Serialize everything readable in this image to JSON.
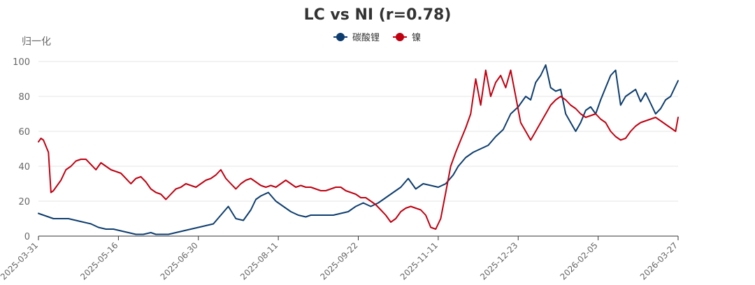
{
  "chart_data": {
    "type": "line",
    "title": "LC vs NI (r=0.78)",
    "ylabel": "归一化",
    "xlabel": "",
    "ylim": [
      0,
      100
    ],
    "yticks": [
      "0",
      "20",
      "40",
      "60",
      "80",
      "100"
    ],
    "grid": true,
    "legend_position": "top-center",
    "x_tick_labels": [
      "2025-03-31",
      "2025-05-16",
      "2025-06-30",
      "2025-08-11",
      "2025-09-22",
      "2025-11-11",
      "2025-12-23",
      "2026-02-05",
      "2026-03-27"
    ],
    "x_tick_positions": [
      0,
      32,
      64,
      96,
      128,
      160,
      192,
      224,
      256
    ],
    "n_points": 257,
    "series": [
      {
        "name": "碳酸锂",
        "color": "#0d3d6e",
        "x": [
          0,
          4,
          6,
          9,
          12,
          15,
          18,
          21,
          24,
          27,
          30,
          33,
          36,
          39,
          42,
          45,
          47,
          50,
          52,
          55,
          58,
          61,
          64,
          67,
          70,
          73,
          76,
          79,
          82,
          85,
          87,
          89,
          92,
          95,
          98,
          101,
          104,
          107,
          109,
          112,
          115,
          118,
          121,
          124,
          127,
          130,
          133,
          136,
          139,
          142,
          145,
          148,
          151,
          154,
          157,
          160,
          163,
          166,
          168,
          171,
          174,
          177,
          180,
          183,
          186,
          189,
          192,
          195,
          197,
          199,
          201,
          203,
          205,
          207,
          209,
          211,
          213,
          215,
          217,
          219,
          221,
          223,
          225,
          227,
          229,
          231,
          233,
          235,
          237,
          239,
          241,
          243,
          245,
          247,
          249,
          251,
          253,
          255,
          256
        ],
        "values": [
          13,
          11,
          10,
          10,
          10,
          9,
          8,
          7,
          5,
          4,
          4,
          3,
          2,
          1,
          1,
          2,
          1,
          1,
          1,
          2,
          3,
          4,
          5,
          6,
          7,
          12,
          17,
          10,
          9,
          15,
          21,
          23,
          25,
          20,
          17,
          14,
          12,
          11,
          12,
          12,
          12,
          12,
          13,
          14,
          17,
          19,
          17,
          19,
          22,
          25,
          28,
          33,
          27,
          30,
          29,
          28,
          30,
          35,
          40,
          45,
          48,
          50,
          52,
          57,
          61,
          70,
          74,
          80,
          78,
          88,
          92,
          98,
          85,
          83,
          84,
          70,
          65,
          60,
          65,
          72,
          74,
          70,
          78,
          85,
          92,
          95,
          75,
          80,
          82,
          84,
          77,
          82,
          76,
          70,
          73,
          78,
          80,
          86,
          89
        ]
      },
      {
        "name": "镍",
        "color": "#c00010",
        "x": [
          0,
          1,
          2,
          4,
          5,
          6,
          7,
          9,
          11,
          13,
          15,
          17,
          19,
          21,
          23,
          25,
          27,
          29,
          31,
          33,
          35,
          37,
          39,
          41,
          43,
          45,
          47,
          49,
          51,
          53,
          55,
          57,
          59,
          61,
          63,
          65,
          67,
          69,
          71,
          73,
          75,
          77,
          79,
          81,
          83,
          85,
          87,
          89,
          91,
          93,
          95,
          97,
          99,
          101,
          103,
          105,
          107,
          109,
          111,
          113,
          115,
          117,
          119,
          121,
          123,
          125,
          127,
          129,
          131,
          133,
          135,
          137,
          139,
          141,
          143,
          145,
          147,
          149,
          151,
          153,
          155,
          157,
          159,
          161,
          163,
          165,
          167,
          169,
          171,
          173,
          175,
          177,
          179,
          181,
          183,
          185,
          187,
          189,
          191,
          193,
          195,
          197,
          199,
          201,
          203,
          205,
          207,
          209,
          211,
          213,
          215,
          217,
          219,
          221,
          223,
          225,
          227,
          229,
          231,
          233,
          235,
          237,
          239,
          241,
          243,
          245,
          247,
          249,
          251,
          253,
          255,
          256
        ],
        "values": [
          54,
          56,
          55,
          48,
          25,
          26,
          28,
          32,
          38,
          40,
          43,
          44,
          44,
          41,
          38,
          42,
          40,
          38,
          37,
          36,
          33,
          30,
          33,
          34,
          31,
          27,
          25,
          24,
          21,
          24,
          27,
          28,
          30,
          29,
          28,
          30,
          32,
          33,
          35,
          38,
          33,
          30,
          27,
          30,
          32,
          33,
          31,
          29,
          28,
          29,
          28,
          30,
          32,
          30,
          28,
          29,
          28,
          28,
          27,
          26,
          26,
          27,
          28,
          28,
          26,
          25,
          24,
          22,
          22,
          20,
          18,
          15,
          12,
          8,
          10,
          14,
          16,
          17,
          16,
          15,
          12,
          5,
          4,
          10,
          25,
          40,
          48,
          55,
          62,
          70,
          90,
          75,
          95,
          80,
          88,
          92,
          85,
          95,
          80,
          65,
          60,
          55,
          60,
          65,
          70,
          75,
          78,
          80,
          78,
          75,
          73,
          70,
          68,
          69,
          70,
          67,
          65,
          60,
          57,
          55,
          56,
          60,
          63,
          65,
          66,
          67,
          68,
          66,
          64,
          62,
          60,
          68
        ]
      }
    ]
  }
}
